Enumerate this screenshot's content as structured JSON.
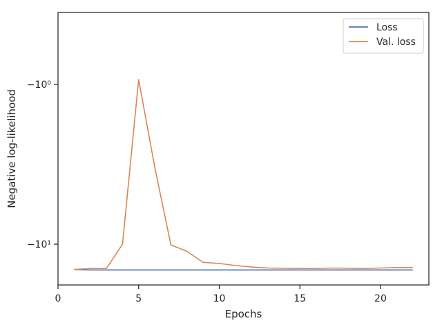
{
  "chart_data": {
    "type": "line",
    "xlabel": "Epochs",
    "ylabel": "Negative log-likelihood",
    "x_scale": "linear",
    "y_scale": "symlog (negative values)",
    "xlim": [
      0,
      23
    ],
    "ylim": [
      -18,
      -0.55
    ],
    "x_ticks": [
      0,
      5,
      10,
      15,
      20
    ],
    "x_tick_labels": [
      "0",
      "5",
      "10",
      "15",
      "20"
    ],
    "y_ticks": [
      -1,
      -10
    ],
    "y_tick_labels": [
      "−10⁰",
      "−10¹"
    ],
    "grid": false,
    "legend_position": "top-right",
    "series": [
      {
        "name": "Loss",
        "color": "#4c72b0",
        "x": [
          1,
          2,
          3,
          4,
          5,
          6,
          7,
          8,
          9,
          10,
          11,
          12,
          13,
          14,
          15,
          16,
          17,
          18,
          19,
          20,
          21,
          22
        ],
        "y": [
          -14.4,
          -14.5,
          -14.5,
          -14.5,
          -14.5,
          -14.5,
          -14.5,
          -14.5,
          -14.5,
          -14.5,
          -14.5,
          -14.5,
          -14.5,
          -14.5,
          -14.5,
          -14.5,
          -14.5,
          -14.5,
          -14.5,
          -14.5,
          -14.5,
          -14.5
        ]
      },
      {
        "name": "Val. loss",
        "color": "#dd8452",
        "x": [
          1,
          2,
          3,
          4,
          5,
          6,
          7,
          8,
          9,
          10,
          11,
          12,
          13,
          14,
          15,
          16,
          17,
          18,
          19,
          20,
          21,
          22
        ],
        "y": [
          -14.4,
          -14.2,
          -14.2,
          -10.0,
          -0.97,
          -3.3,
          -10.1,
          -11.1,
          -13.0,
          -13.2,
          -13.6,
          -13.9,
          -14.1,
          -14.15,
          -14.2,
          -14.2,
          -14.1,
          -14.15,
          -14.2,
          -14.1,
          -14.0,
          -14.0
        ]
      }
    ]
  }
}
